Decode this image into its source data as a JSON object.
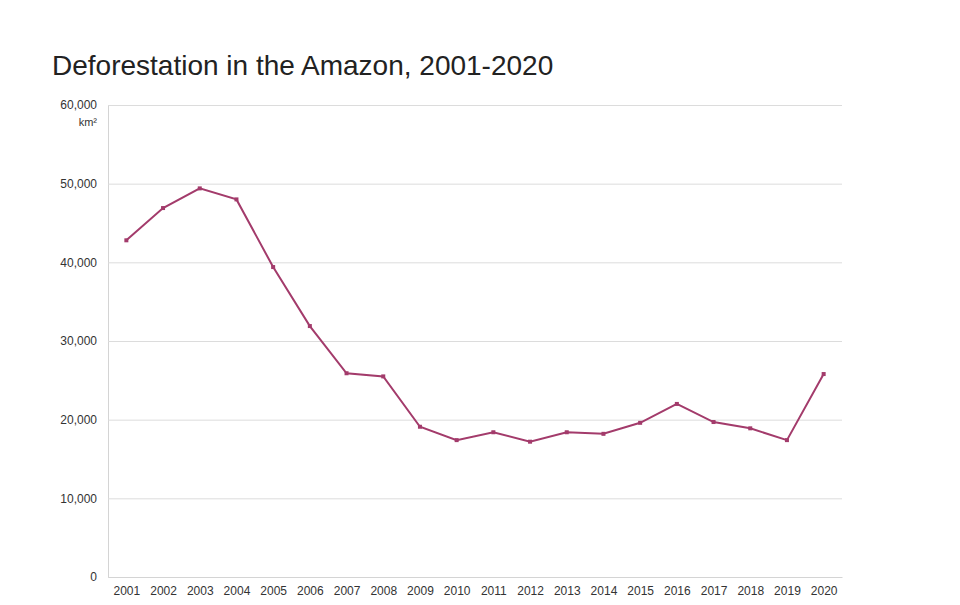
{
  "chart_data": {
    "type": "line",
    "title": "Deforestation in the Amazon, 2001-2020",
    "ylabel": "km²",
    "categories": [
      "2001",
      "2002",
      "2003",
      "2004",
      "2005",
      "2006",
      "2007",
      "2008",
      "2009",
      "2010",
      "2011",
      "2012",
      "2013",
      "2014",
      "2015",
      "2016",
      "2017",
      "2018",
      "2019",
      "2020"
    ],
    "values": [
      42800,
      46900,
      49400,
      48000,
      39400,
      31900,
      25900,
      25500,
      19100,
      17400,
      18400,
      17200,
      18400,
      18200,
      19600,
      22000,
      19700,
      18900,
      17400,
      25800
    ],
    "color": "#a33b6b",
    "marker": "square",
    "line_style": "solid",
    "ylim": [
      0,
      60000
    ],
    "yticks": [
      0,
      {
        "value": 10000,
        "label": "10,000"
      },
      {
        "value": 20000,
        "label": "20,000"
      },
      {
        "value": 30000,
        "label": "30,000"
      },
      {
        "value": 40000,
        "label": "40,000"
      },
      {
        "value": 50000,
        "label": "50,000"
      },
      {
        "value": 60000,
        "label": "60,000"
      }
    ],
    "grid": true
  }
}
